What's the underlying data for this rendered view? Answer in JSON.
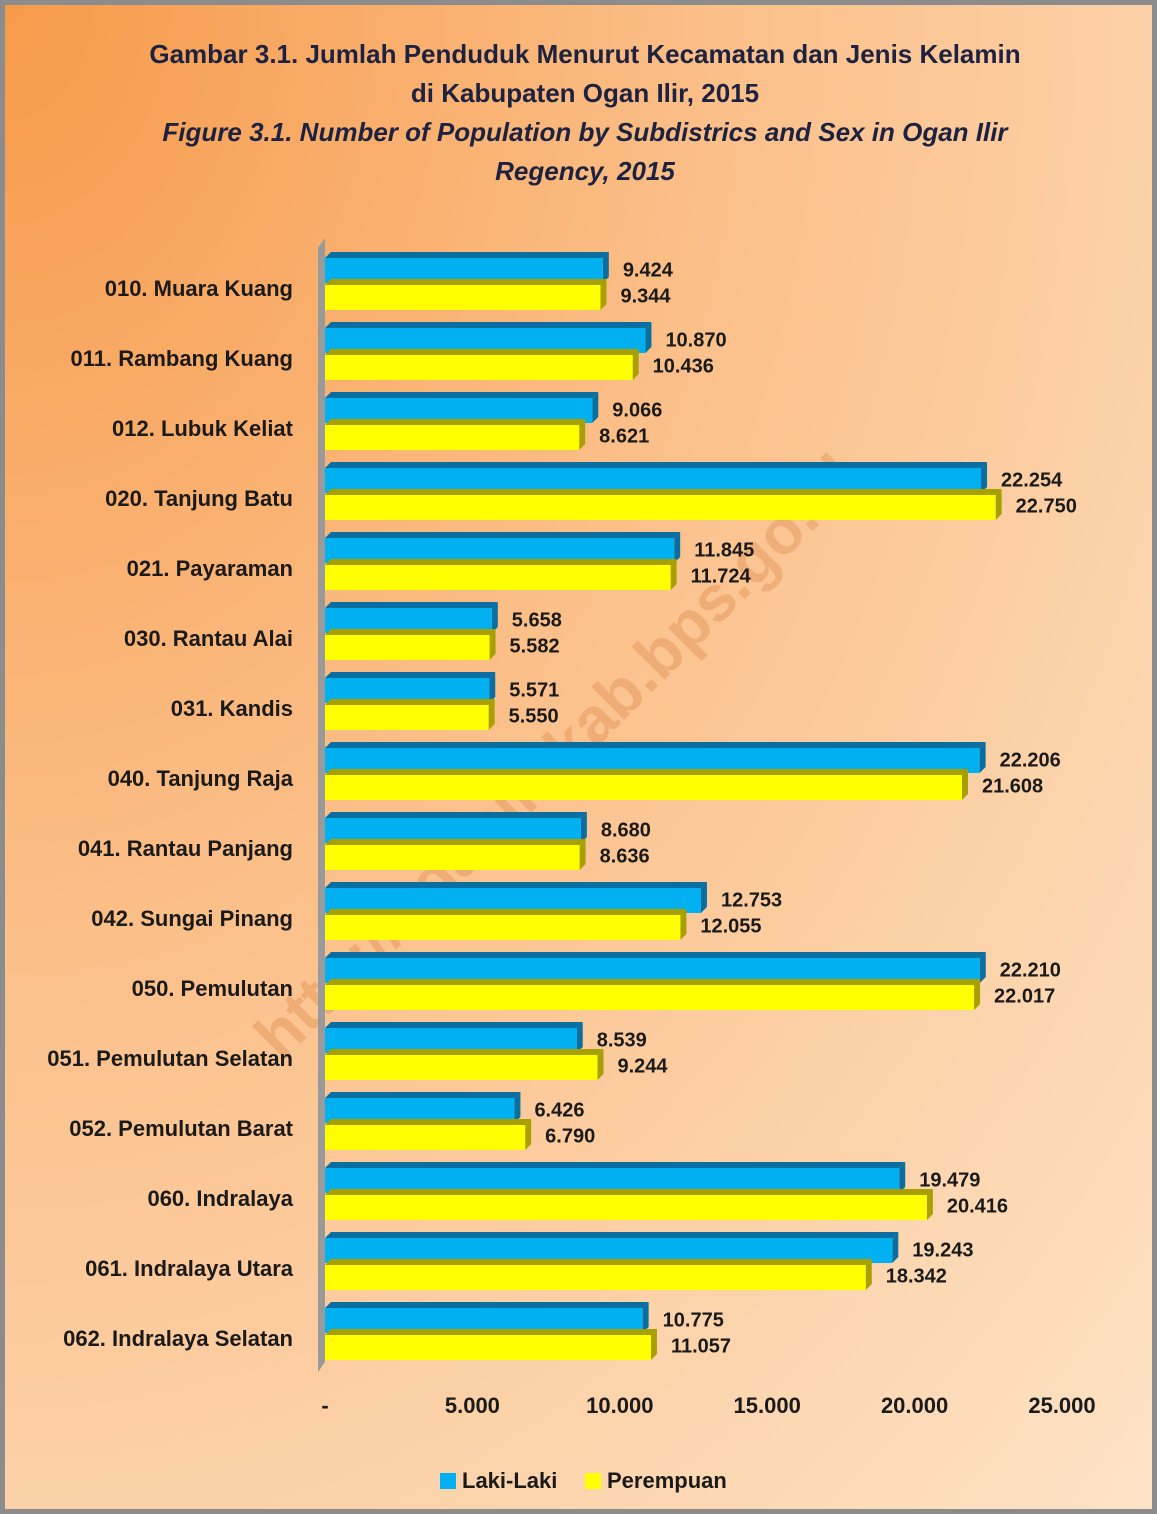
{
  "chart_data": {
    "type": "bar",
    "orientation": "horizontal",
    "title": "Gambar 3.1. Jumlah Penduduk Menurut Kecamatan dan Jenis Kelamin di Kabupaten Ogan Ilir, 2015",
    "subtitle": "Figure 3.1. Number of Population by Subdistrics and Sex in Ogan Ilir Regency, 2015",
    "watermark": "http://oganilirkab.bps.go.id",
    "categories": [
      "010. Muara Kuang",
      "011. Rambang Kuang",
      "012. Lubuk Keliat",
      "020. Tanjung Batu",
      "021. Payaraman",
      "030. Rantau Alai",
      "031. Kandis",
      "040. Tanjung Raja",
      "041. Rantau Panjang",
      "042. Sungai Pinang",
      "050. Pemulutan",
      "051. Pemulutan Selatan",
      "052. Pemulutan Barat",
      "060. Indralaya",
      "061. Indralaya Utara",
      "062. Indralaya Selatan"
    ],
    "series": [
      {
        "name": "Laki-Laki",
        "color": "#00b0f0",
        "side_color": "#0a6fa0",
        "values": [
          9424,
          10870,
          9066,
          22254,
          11845,
          5658,
          5571,
          22206,
          8680,
          12753,
          22210,
          8539,
          6426,
          19479,
          19243,
          10775
        ],
        "value_labels": [
          "9.424",
          "10.870",
          "9.066",
          "22.254",
          "11.845",
          "5.658",
          "5.571",
          "22.206",
          "8.680",
          "12.753",
          "22.210",
          "8.539",
          "6.426",
          "19.479",
          "19.243",
          "10.775"
        ]
      },
      {
        "name": "Perempuan",
        "color": "#ffff00",
        "side_color": "#a8a000",
        "values": [
          9344,
          10436,
          8621,
          22750,
          11724,
          5582,
          5550,
          21608,
          8636,
          12055,
          22017,
          9244,
          6790,
          20416,
          18342,
          11057
        ],
        "value_labels": [
          "9.344",
          "10.436",
          "8.621",
          "22.750",
          "11.724",
          "5.582",
          "5.550",
          "21.608",
          "8.636",
          "12.055",
          "22.017",
          "9.244",
          "6.790",
          "20.416",
          "18.342",
          "11.057"
        ]
      }
    ],
    "xlim": [
      0,
      25000
    ],
    "xticks": [
      {
        "value": 0,
        "label": "-"
      },
      {
        "value": 5000,
        "label": "5.000"
      },
      {
        "value": 10000,
        "label": "10.000"
      },
      {
        "value": 15000,
        "label": "15.000"
      },
      {
        "value": 20000,
        "label": "20.000"
      },
      {
        "value": 25000,
        "label": "25.000"
      }
    ],
    "legend": "bottom",
    "grid": false
  }
}
